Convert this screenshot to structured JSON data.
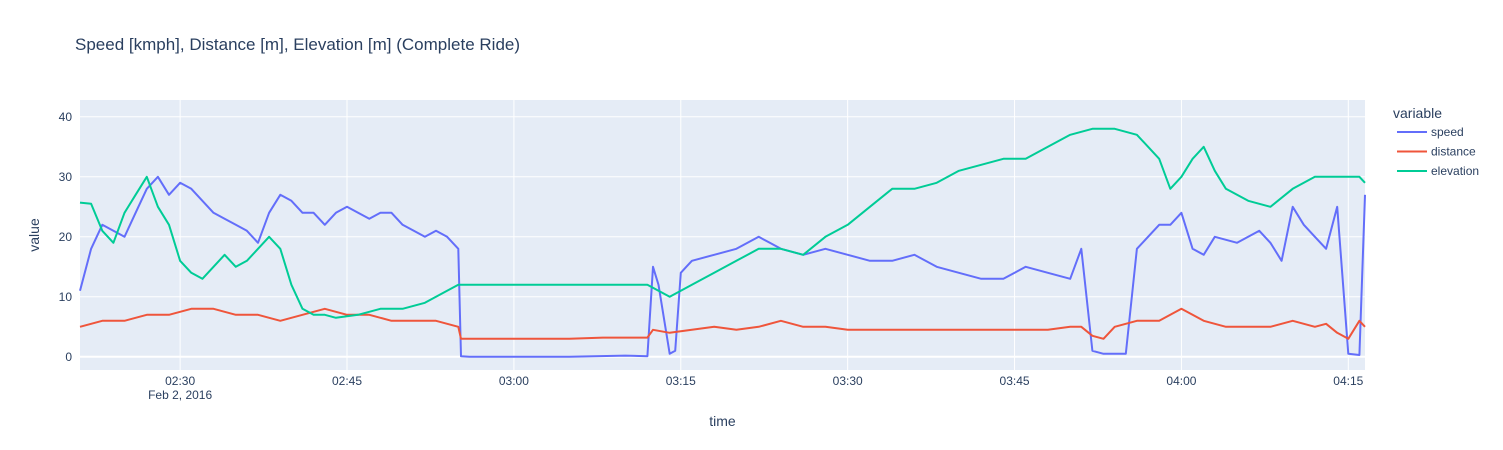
{
  "chart_data": {
    "type": "line",
    "title": "Speed [kmph], Distance [m], Elevation [m] (Complete Ride)",
    "xlabel": "time",
    "ylabel": "value",
    "xlim": [
      "2016-02-02 02:21:00",
      "2016-02-02 04:16:30"
    ],
    "ylim": [
      -2.2,
      42.8
    ],
    "x_ticks": [
      "02:30",
      "02:45",
      "03:00",
      "03:15",
      "03:30",
      "03:45",
      "04:00",
      "04:15"
    ],
    "x_tick_sublabel": "Feb 2, 2016",
    "y_ticks": [
      0,
      10,
      20,
      30,
      40
    ],
    "grid": true,
    "legend_title": "variable",
    "legend_position": "right",
    "series": [
      {
        "name": "speed",
        "color": "#636efa",
        "x": [
          "02:21:00",
          "02:22:00",
          "02:23:00",
          "02:24:00",
          "02:25:00",
          "02:26:00",
          "02:27:00",
          "02:28:00",
          "02:29:00",
          "02:30:00",
          "02:31:00",
          "02:32:00",
          "02:33:00",
          "02:34:00",
          "02:35:00",
          "02:36:00",
          "02:37:00",
          "02:38:00",
          "02:39:00",
          "02:40:00",
          "02:41:00",
          "02:42:00",
          "02:43:00",
          "02:44:00",
          "02:45:00",
          "02:46:00",
          "02:47:00",
          "02:48:00",
          "02:49:00",
          "02:50:00",
          "02:51:00",
          "02:52:00",
          "02:53:00",
          "02:54:00",
          "02:55:00",
          "02:55:15",
          "02:56:00",
          "03:05:00",
          "03:10:00",
          "03:12:00",
          "03:12:30",
          "03:13:00",
          "03:14:00",
          "03:14:30",
          "03:15:00",
          "03:15:30",
          "03:16:00",
          "03:18:00",
          "03:20:00",
          "03:22:00",
          "03:23:00",
          "03:24:00",
          "03:26:00",
          "03:28:00",
          "03:30:00",
          "03:32:00",
          "03:34:00",
          "03:36:00",
          "03:38:00",
          "03:40:00",
          "03:42:00",
          "03:44:00",
          "03:46:00",
          "03:48:00",
          "03:50:00",
          "03:51:00",
          "03:52:00",
          "03:53:00",
          "03:54:00",
          "03:55:00",
          "03:56:00",
          "03:58:00",
          "03:59:00",
          "04:00:00",
          "04:01:00",
          "04:02:00",
          "04:03:00",
          "04:05:00",
          "04:07:00",
          "04:08:00",
          "04:09:00",
          "04:10:00",
          "04:11:00",
          "04:12:00",
          "04:13:00",
          "04:14:00",
          "04:15:00",
          "04:16:00",
          "04:16:30"
        ],
        "values": [
          11,
          18,
          22,
          21,
          20,
          24,
          28,
          30,
          27,
          29,
          28,
          26,
          24,
          23,
          22,
          21,
          19,
          24,
          27,
          26,
          24,
          24,
          22,
          24,
          25,
          24,
          23,
          24,
          24,
          22,
          21,
          20,
          21,
          20,
          18,
          0.1,
          0,
          0,
          0.2,
          0.1,
          15,
          12,
          0.5,
          1,
          14,
          15,
          16,
          17,
          18,
          20,
          19,
          18,
          17,
          18,
          17,
          16,
          16,
          17,
          15,
          14,
          13,
          13,
          15,
          14,
          13,
          18,
          1,
          0.5,
          0.5,
          0.5,
          18,
          22,
          22,
          24,
          18,
          17,
          20,
          19,
          21,
          19,
          16,
          25,
          22,
          20,
          18,
          25,
          0.5,
          0.3,
          27
        ]
      },
      {
        "name": "distance",
        "color": "#ef553b",
        "x": [
          "02:21:00",
          "02:23:00",
          "02:25:00",
          "02:27:00",
          "02:29:00",
          "02:31:00",
          "02:33:00",
          "02:35:00",
          "02:37:00",
          "02:39:00",
          "02:41:00",
          "02:43:00",
          "02:45:00",
          "02:47:00",
          "02:49:00",
          "02:51:00",
          "02:53:00",
          "02:55:00",
          "02:55:15",
          "03:00:00",
          "03:05:00",
          "03:08:00",
          "03:12:00",
          "03:12:30",
          "03:14:00",
          "03:16:00",
          "03:18:00",
          "03:20:00",
          "03:22:00",
          "03:24:00",
          "03:26:00",
          "03:28:00",
          "03:30:00",
          "03:34:00",
          "03:38:00",
          "03:42:00",
          "03:46:00",
          "03:48:00",
          "03:50:00",
          "03:51:00",
          "03:52:00",
          "03:53:00",
          "03:54:00",
          "03:56:00",
          "03:58:00",
          "03:59:00",
          "04:00:00",
          "04:02:00",
          "04:04:00",
          "04:06:00",
          "04:08:00",
          "04:10:00",
          "04:12:00",
          "04:13:00",
          "04:14:00",
          "04:15:00",
          "04:16:00",
          "04:16:30"
        ],
        "values": [
          5,
          6,
          6,
          7,
          7,
          8,
          8,
          7,
          7,
          6,
          7,
          8,
          7,
          7,
          6,
          6,
          6,
          5,
          3,
          3,
          3,
          3.2,
          3.2,
          4.5,
          4,
          4.5,
          5,
          4.5,
          5,
          6,
          5,
          5,
          4.5,
          4.5,
          4.5,
          4.5,
          4.5,
          4.5,
          5,
          5,
          3.5,
          3,
          5,
          6,
          6,
          7,
          8,
          6,
          5,
          5,
          5,
          6,
          5,
          5.5,
          4,
          3,
          6,
          5
        ]
      },
      {
        "name": "elevation",
        "color": "#00cc96",
        "x": [
          "02:21:00",
          "02:22:00",
          "02:23:00",
          "02:24:00",
          "02:25:00",
          "02:26:00",
          "02:27:00",
          "02:28:00",
          "02:29:00",
          "02:30:00",
          "02:31:00",
          "02:32:00",
          "02:33:00",
          "02:34:00",
          "02:35:00",
          "02:36:00",
          "02:37:00",
          "02:38:00",
          "02:39:00",
          "02:40:00",
          "02:41:00",
          "02:42:00",
          "02:43:00",
          "02:44:00",
          "02:46:00",
          "02:48:00",
          "02:50:00",
          "02:52:00",
          "02:54:00",
          "02:55:00",
          "03:00:00",
          "03:05:00",
          "03:10:00",
          "03:12:00",
          "03:13:00",
          "03:14:00",
          "03:15:00",
          "03:16:00",
          "03:18:00",
          "03:20:00",
          "03:22:00",
          "03:24:00",
          "03:26:00",
          "03:28:00",
          "03:30:00",
          "03:32:00",
          "03:34:00",
          "03:36:00",
          "03:38:00",
          "03:40:00",
          "03:42:00",
          "03:44:00",
          "03:46:00",
          "03:48:00",
          "03:50:00",
          "03:52:00",
          "03:54:00",
          "03:56:00",
          "03:57:00",
          "03:58:00",
          "03:59:00",
          "04:00:00",
          "04:01:00",
          "04:02:00",
          "04:03:00",
          "04:04:00",
          "04:06:00",
          "04:08:00",
          "04:10:00",
          "04:12:00",
          "04:14:00",
          "04:16:00",
          "04:16:30"
        ],
        "values": [
          25.7,
          25.5,
          21,
          19,
          24,
          27,
          30,
          25,
          22,
          16,
          14,
          13,
          15,
          17,
          15,
          16,
          18,
          20,
          18,
          12,
          8,
          7,
          7,
          6.5,
          7,
          8,
          8,
          9,
          11,
          12,
          12,
          12,
          12,
          12,
          11,
          10,
          11,
          12,
          14,
          16,
          18,
          18,
          17,
          20,
          22,
          25,
          28,
          28,
          29,
          31,
          32,
          33,
          33,
          35,
          37,
          38,
          38,
          37,
          35,
          33,
          28,
          30,
          33,
          35,
          31,
          28,
          26,
          25,
          28,
          30,
          30,
          30,
          29
        ]
      }
    ]
  }
}
